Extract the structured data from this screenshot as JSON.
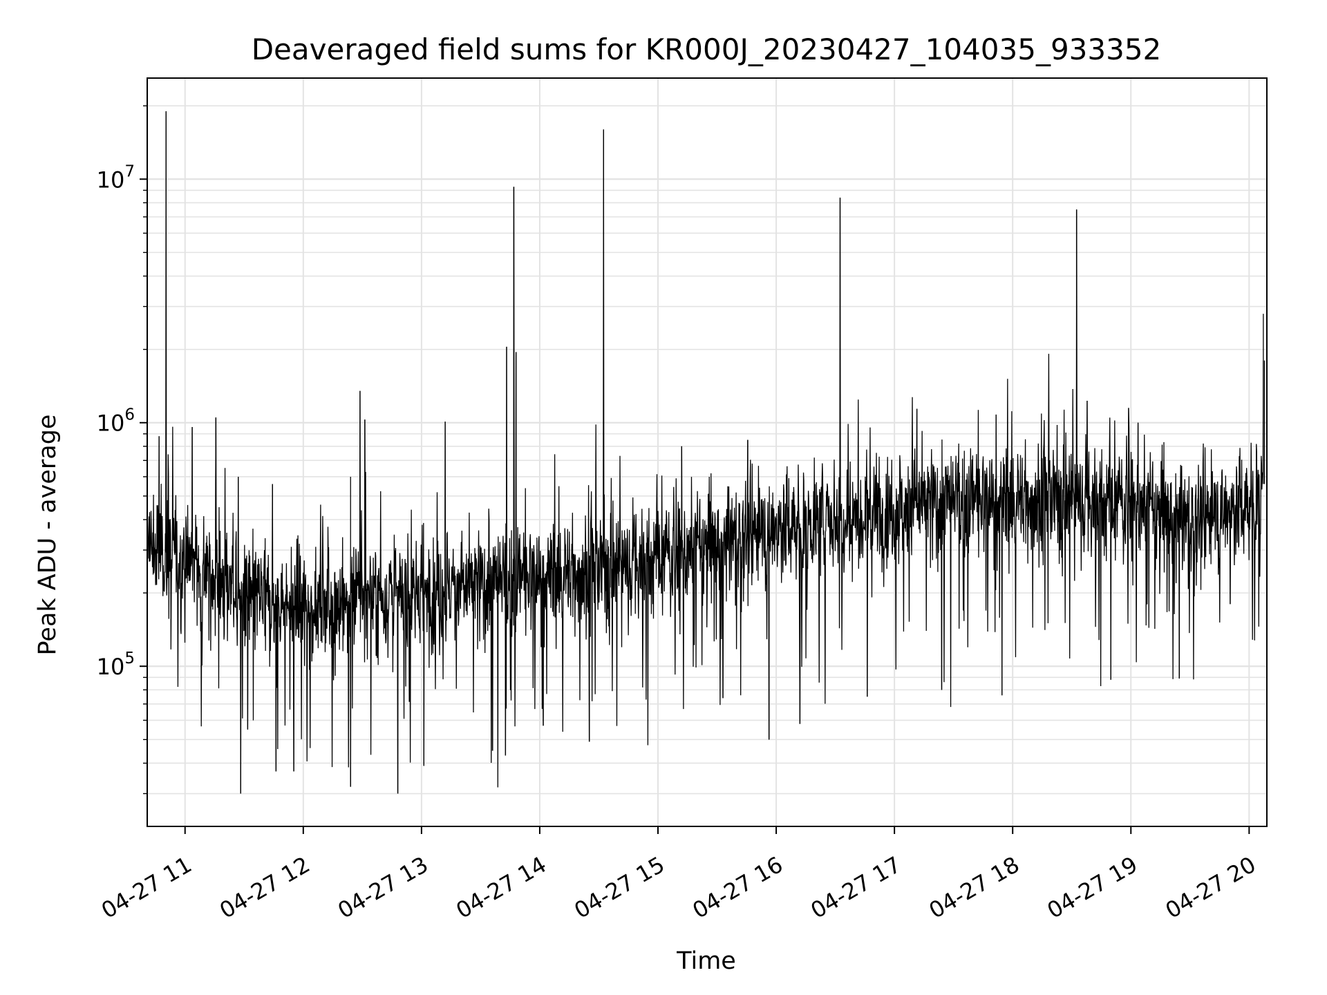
{
  "chart_data": {
    "type": "line",
    "title": "Deaveraged field sums for KR000J_20230427_104035_933352",
    "xlabel": "Time",
    "ylabel": "Peak ADU - average",
    "yscale": "log",
    "ylim": [
      22000,
      26000000
    ],
    "xlim_hours": [
      10.68,
      20.15
    ],
    "x_tick_labels": [
      "04-27 11",
      "04-27 12",
      "04-27 13",
      "04-27 14",
      "04-27 15",
      "04-27 16",
      "04-27 17",
      "04-27 18",
      "04-27 19",
      "04-27 20"
    ],
    "x_tick_hours": [
      11,
      12,
      13,
      14,
      15,
      16,
      17,
      18,
      19,
      20
    ],
    "y_major_ticks": [
      {
        "value": 100000,
        "base": "10",
        "exp": "5"
      },
      {
        "value": 1000000,
        "base": "10",
        "exp": "6"
      },
      {
        "value": 10000000,
        "base": "10",
        "exp": "7"
      }
    ],
    "grid": true,
    "series": [
      {
        "name": "Peak ADU - average",
        "color": "#000000",
        "trend": {
          "hours": [
            10.68,
            10.9,
            11.2,
            11.5,
            12.0,
            12.5,
            13.0,
            13.5,
            14.0,
            14.5,
            15.0,
            15.5,
            16.0,
            16.5,
            17.0,
            17.5,
            18.0,
            18.5,
            19.0,
            19.5,
            20.0,
            20.12
          ],
          "values": [
            300000,
            290000,
            240000,
            190000,
            175000,
            185000,
            200000,
            215000,
            230000,
            250000,
            280000,
            320000,
            370000,
            410000,
            450000,
            470000,
            480000,
            490000,
            470000,
            390000,
            460000,
            560000
          ]
        },
        "spikes": [
          {
            "hour": 10.84,
            "value": 19000000
          },
          {
            "hour": 10.78,
            "value": 880000
          },
          {
            "hour": 11.06,
            "value": 960000
          },
          {
            "hour": 11.26,
            "value": 1050000
          },
          {
            "hour": 11.45,
            "value": 600000
          },
          {
            "hour": 11.74,
            "value": 560000
          },
          {
            "hour": 12.4,
            "value": 600000
          },
          {
            "hour": 12.48,
            "value": 1350000
          },
          {
            "hour": 12.52,
            "value": 1030000
          },
          {
            "hour": 13.2,
            "value": 1010000
          },
          {
            "hour": 13.72,
            "value": 2050000
          },
          {
            "hour": 13.78,
            "value": 9300000
          },
          {
            "hour": 13.8,
            "value": 1950000
          },
          {
            "hour": 14.54,
            "value": 16000000
          },
          {
            "hour": 15.2,
            "value": 800000
          },
          {
            "hour": 15.76,
            "value": 850000
          },
          {
            "hour": 16.54,
            "value": 8400000
          },
          {
            "hour": 17.19,
            "value": 1140000
          },
          {
            "hour": 17.86,
            "value": 1080000
          },
          {
            "hour": 18.54,
            "value": 7500000
          },
          {
            "hour": 18.63,
            "value": 1230000
          },
          {
            "hour": 18.98,
            "value": 1150000
          },
          {
            "hour": 19.06,
            "value": 1000000
          },
          {
            "hour": 20.12,
            "value": 2800000
          },
          {
            "hour": 20.13,
            "value": 1800000
          }
        ],
        "dips": [
          {
            "hour": 11.47,
            "value": 30000
          },
          {
            "hour": 11.53,
            "value": 55000
          },
          {
            "hour": 11.77,
            "value": 37000
          },
          {
            "hour": 11.92,
            "value": 37000
          },
          {
            "hour": 12.4,
            "value": 32000
          },
          {
            "hour": 12.8,
            "value": 30000
          },
          {
            "hour": 13.02,
            "value": 39000
          },
          {
            "hour": 13.6,
            "value": 45000
          },
          {
            "hour": 13.71,
            "value": 43000
          },
          {
            "hour": 14.03,
            "value": 57000
          },
          {
            "hour": 14.42,
            "value": 49000
          },
          {
            "hour": 15.55,
            "value": 74000
          },
          {
            "hour": 15.94,
            "value": 50000
          },
          {
            "hour": 16.2,
            "value": 58000
          },
          {
            "hour": 16.77,
            "value": 75000
          },
          {
            "hour": 17.4,
            "value": 80000
          },
          {
            "hour": 17.91,
            "value": 76000
          },
          {
            "hour": 18.83,
            "value": 88000
          },
          {
            "hour": 19.41,
            "value": 89000
          },
          {
            "hour": 19.84,
            "value": 180000
          }
        ]
      }
    ]
  }
}
